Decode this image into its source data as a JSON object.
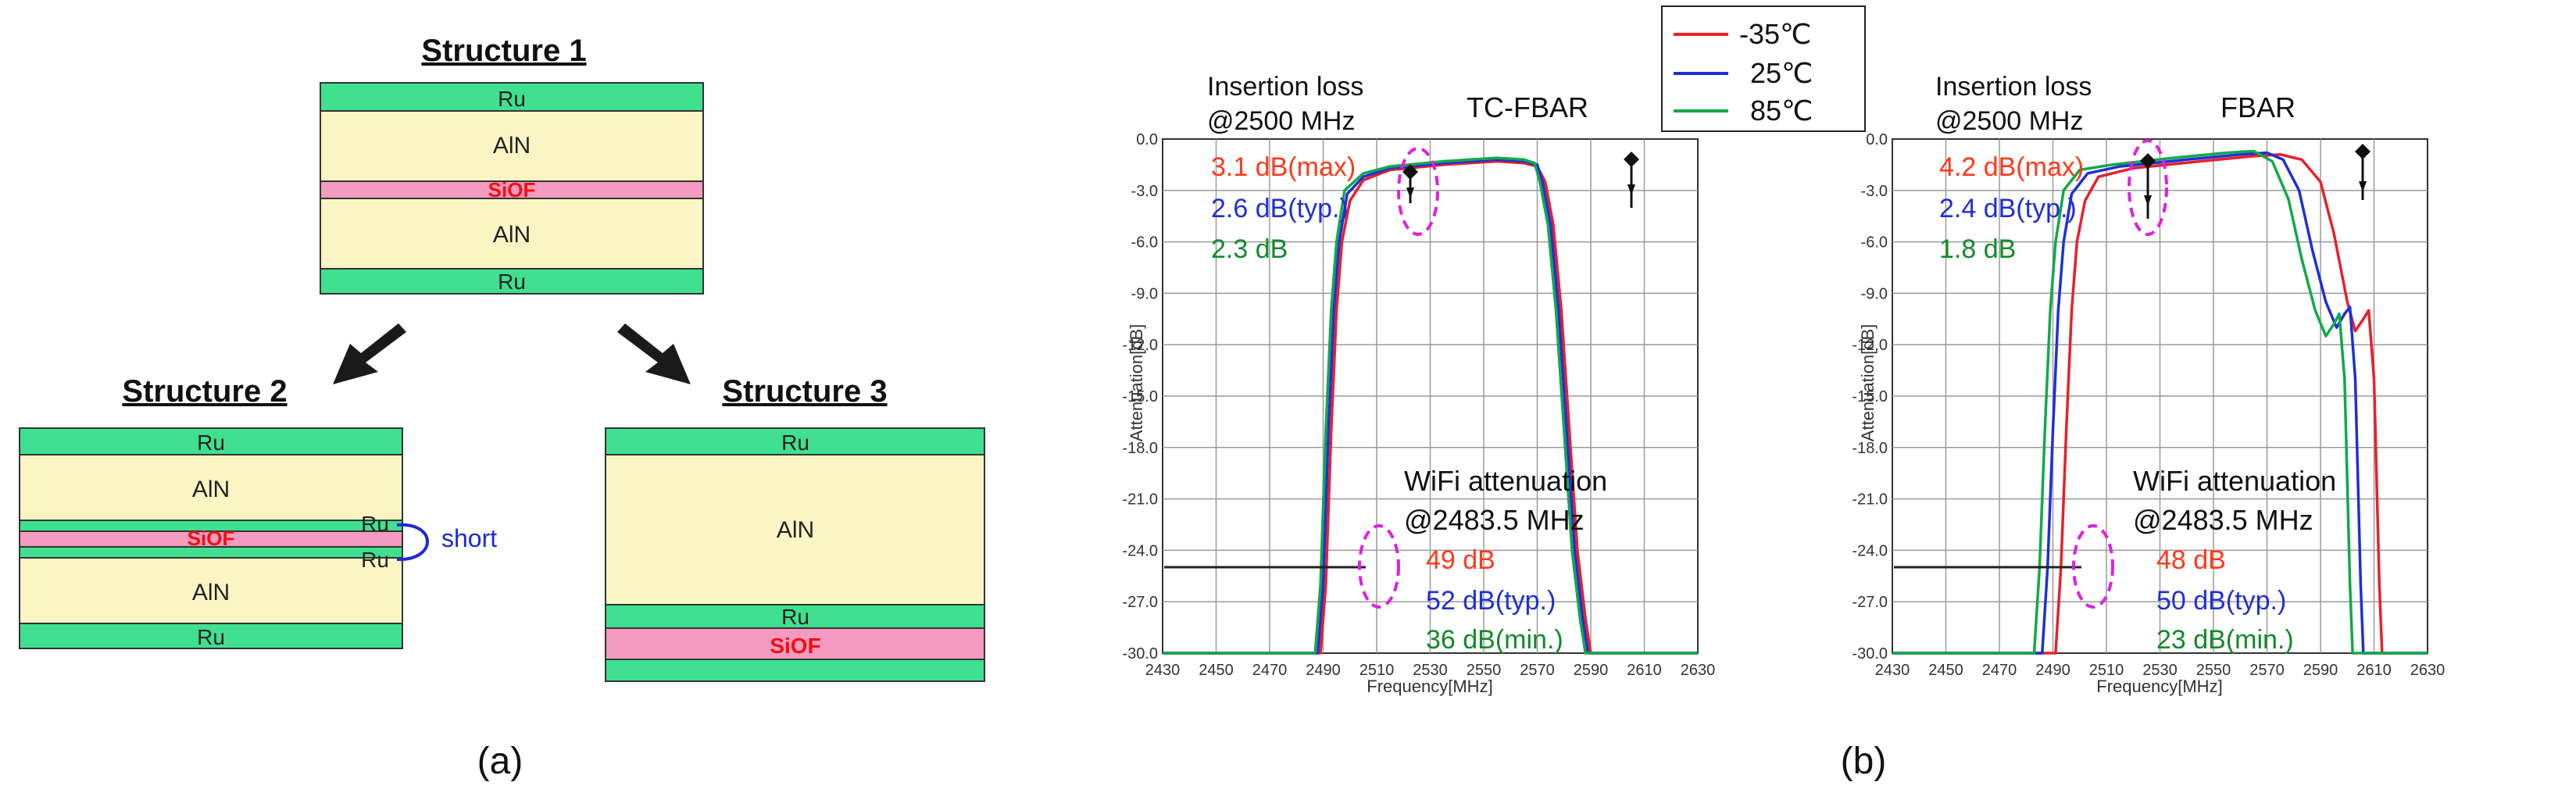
{
  "panel_a": {
    "structure1": {
      "title": "Structure 1",
      "layers": [
        "Ru",
        "AlN",
        "SiOF",
        "AlN",
        "Ru"
      ]
    },
    "structure2": {
      "title": "Structure 2",
      "layers": [
        "Ru",
        "AlN",
        "SiOF",
        "AlN",
        "Ru"
      ],
      "ru_tags": [
        "Ru",
        "Ru"
      ],
      "short_label": "short"
    },
    "structure3": {
      "title": "Structure 3",
      "layers": [
        "Ru",
        "AlN",
        "Ru",
        "SiOF",
        "Ru"
      ]
    },
    "caption": "(a)"
  },
  "panel_b": {
    "caption": "(b)",
    "legend": [
      {
        "label": "-35℃",
        "color": "#e8202a"
      },
      {
        "label": "25℃",
        "color": "#1f2fd6"
      },
      {
        "label": "85℃",
        "color": "#12a84a"
      }
    ],
    "colors": {
      "red": "#ff3a1a",
      "blue": "#1f2fd6",
      "green": "#128a2a",
      "highlight": "#e020e0"
    }
  },
  "chart_data": [
    {
      "type": "line",
      "title": "TC-FBAR",
      "xlabel": "Frequency[MHz]",
      "ylabel": "Attenuation[dB]",
      "xlim": [
        2430,
        2630
      ],
      "ylim": [
        -30,
        0
      ],
      "xticks": [
        "2430",
        "2450",
        "2470",
        "2490",
        "2510",
        "2530",
        "2550",
        "2570",
        "2590",
        "2610",
        "2630"
      ],
      "yticks": [
        "0.0",
        "-3.0",
        "-6.0",
        "-9.0",
        "-12.0",
        "-15.0",
        "-18.0",
        "-21.0",
        "-24.0",
        "-27.0",
        "-30.0"
      ],
      "grid": true,
      "annotations": {
        "il_title": [
          "Insertion loss",
          "@2500 MHz"
        ],
        "il_values": [
          "3.1 dB(max)",
          "2.6 dB(typ.)",
          "2.3 dB"
        ],
        "wifi_title": [
          "WiFi attenuation",
          "@2483.5 MHz"
        ],
        "wifi_values": [
          "49 dB",
          "52 dB(typ.)",
          "36 dB(min.)"
        ]
      },
      "series": [
        {
          "name": "-35℃",
          "color": "#e8202a",
          "x": [
            2430,
            2489,
            2491,
            2493,
            2495,
            2497,
            2500,
            2505,
            2515,
            2535,
            2555,
            2565,
            2570,
            2573,
            2576,
            2579,
            2582,
            2585,
            2588,
            2590,
            2591,
            2630
          ],
          "y": [
            -30,
            -30,
            -26,
            -17,
            -10,
            -6,
            -3.6,
            -2.4,
            -1.8,
            -1.5,
            -1.3,
            -1.4,
            -1.6,
            -2.5,
            -5,
            -10,
            -17,
            -24,
            -28,
            -30,
            -30,
            -30
          ]
        },
        {
          "name": "25℃",
          "color": "#1f2fd6",
          "x": [
            2430,
            2488,
            2490,
            2492,
            2494,
            2496,
            2499,
            2505,
            2515,
            2535,
            2555,
            2565,
            2570,
            2572,
            2575,
            2578,
            2581,
            2584,
            2587,
            2589,
            2590,
            2630
          ],
          "y": [
            -30,
            -30,
            -26,
            -17,
            -10,
            -6,
            -3.2,
            -2.2,
            -1.7,
            -1.4,
            -1.2,
            -1.3,
            -1.5,
            -2.5,
            -5,
            -10,
            -17,
            -24,
            -28,
            -30,
            -30,
            -30
          ]
        },
        {
          "name": "85℃",
          "color": "#12a84a",
          "x": [
            2430,
            2487,
            2489,
            2491,
            2493,
            2495,
            2498,
            2505,
            2515,
            2535,
            2555,
            2565,
            2569,
            2571,
            2574,
            2577,
            2580,
            2583,
            2586,
            2588,
            2589,
            2630
          ],
          "y": [
            -30,
            -30,
            -26,
            -17,
            -10,
            -6,
            -3.0,
            -2.0,
            -1.6,
            -1.3,
            -1.1,
            -1.2,
            -1.4,
            -2.5,
            -5,
            -10,
            -17,
            -24,
            -28,
            -30,
            -30,
            -30
          ]
        }
      ]
    },
    {
      "type": "line",
      "title": "FBAR",
      "xlabel": "Frequency[MHz]",
      "ylabel": "Attenuation[dB]",
      "xlim": [
        2430,
        2630
      ],
      "ylim": [
        -30,
        0
      ],
      "xticks": [
        "2430",
        "2450",
        "2470",
        "2490",
        "2510",
        "2530",
        "2550",
        "2570",
        "2590",
        "2610",
        "2630"
      ],
      "yticks": [
        "0.0",
        "-3.0",
        "-6.0",
        "-9.0",
        "-12.0",
        "-15.0",
        "-18.0",
        "-21.0",
        "-24.0",
        "-27.0",
        "-30.0"
      ],
      "grid": true,
      "annotations": {
        "il_title": [
          "Insertion loss",
          "@2500 MHz"
        ],
        "il_values": [
          "4.2 dB(max)",
          "2.4 dB(typ.)",
          "1.8 dB"
        ],
        "wifi_title": [
          "WiFi attenuation",
          "@2483.5 MHz"
        ],
        "wifi_values": [
          "48 dB",
          "50 dB(typ.)",
          "23 dB(min.)"
        ]
      },
      "series": [
        {
          "name": "-35℃",
          "color": "#e8202a",
          "x": [
            2430,
            2491,
            2493,
            2495,
            2497,
            2499,
            2502,
            2507,
            2520,
            2545,
            2565,
            2575,
            2583,
            2590,
            2595,
            2600,
            2603,
            2606,
            2608,
            2610,
            2612,
            2613,
            2630
          ],
          "y": [
            -30,
            -30,
            -25,
            -17,
            -10,
            -6,
            -3.6,
            -2.2,
            -1.7,
            -1.3,
            -1.0,
            -0.9,
            -1.2,
            -2.5,
            -5.5,
            -9.5,
            -11.2,
            -10.5,
            -10.0,
            -14,
            -26,
            -30,
            -30
          ]
        },
        {
          "name": "25℃",
          "color": "#1f2fd6",
          "x": [
            2430,
            2486,
            2488,
            2490,
            2492,
            2494,
            2497,
            2503,
            2515,
            2540,
            2560,
            2570,
            2576,
            2582,
            2587,
            2592,
            2596,
            2599,
            2601,
            2603,
            2605,
            2606,
            2630
          ],
          "y": [
            -30,
            -30,
            -25,
            -17,
            -10,
            -6,
            -3.2,
            -2.0,
            -1.6,
            -1.2,
            -0.9,
            -0.8,
            -1.2,
            -3,
            -6.5,
            -9.5,
            -11.0,
            -10.2,
            -9.8,
            -14,
            -26,
            -30,
            -30
          ]
        },
        {
          "name": "85℃",
          "color": "#12a84a",
          "x": [
            2430,
            2483,
            2485,
            2487,
            2489,
            2491,
            2494,
            2500,
            2512,
            2535,
            2555,
            2565,
            2572,
            2578,
            2583,
            2588,
            2592,
            2595,
            2597,
            2599,
            2601,
            2602,
            2630
          ],
          "y": [
            -30,
            -30,
            -25,
            -17,
            -10,
            -6,
            -3.0,
            -1.8,
            -1.5,
            -1.1,
            -0.8,
            -0.7,
            -1.3,
            -3.5,
            -7,
            -10,
            -11.5,
            -10.8,
            -10.2,
            -14,
            -26,
            -30,
            -30
          ]
        }
      ]
    }
  ]
}
